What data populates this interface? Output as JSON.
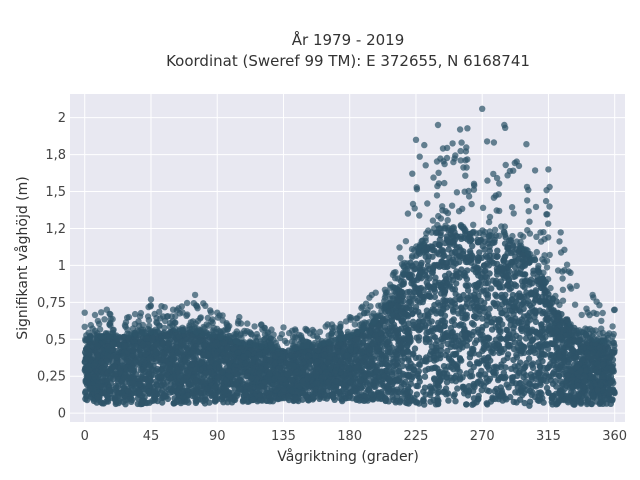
{
  "chart_data": {
    "type": "scatter",
    "title_lines": [
      "År 1979 - 2019",
      "Koordinat (Sweref 99 TM): E 372655, N 6168741"
    ],
    "xlabel": "Vågriktning (grader)",
    "ylabel": "Signifikant våghöjd (m)",
    "xlim": [
      -10,
      367
    ],
    "ylim": [
      -0.06,
      2.16
    ],
    "x_ticks": [
      0,
      45,
      90,
      135,
      180,
      225,
      270,
      315,
      360
    ],
    "y_ticks": [
      0,
      0.25,
      0.5,
      0.75,
      1,
      1.25,
      1.5,
      1.75,
      2
    ],
    "y_tick_labels": [
      "0",
      "0,25",
      "0,5",
      "0,75",
      "1",
      "1,2",
      "1,5",
      "1,8",
      "2"
    ],
    "grid": true,
    "legend": "none",
    "marker_color": "#2e5469",
    "plot_background": "#e8e8f1",
    "series": [
      {
        "x": [
          0,
          15,
          30,
          45,
          60,
          75,
          90,
          105,
          120,
          135,
          150,
          165,
          180,
          195,
          210,
          225,
          240,
          255,
          270,
          285,
          300,
          315,
          330,
          345,
          360
        ],
        "y_min": [
          0.08,
          0.06,
          0.06,
          0.06,
          0.06,
          0.06,
          0.07,
          0.07,
          0.08,
          0.08,
          0.08,
          0.08,
          0.08,
          0.08,
          0.07,
          0.06,
          0.05,
          0.05,
          0.06,
          0.05,
          0.05,
          0.05,
          0.05,
          0.06,
          0.06
        ],
        "y_dense_max": [
          0.5,
          0.52,
          0.53,
          0.55,
          0.56,
          0.55,
          0.52,
          0.48,
          0.45,
          0.43,
          0.45,
          0.48,
          0.52,
          0.6,
          0.8,
          1.1,
          1.25,
          1.25,
          1.2,
          1.2,
          1.1,
          0.85,
          0.6,
          0.5,
          0.48
        ],
        "y_max": [
          0.68,
          0.7,
          0.65,
          0.77,
          0.7,
          0.8,
          0.68,
          0.65,
          0.6,
          0.58,
          0.57,
          0.6,
          0.65,
          0.8,
          0.95,
          1.85,
          1.95,
          1.92,
          2.06,
          1.95,
          1.82,
          1.65,
          0.95,
          0.8,
          0.7
        ]
      }
    ]
  }
}
